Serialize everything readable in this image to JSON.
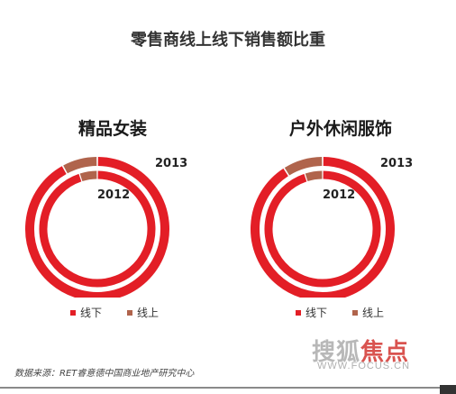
{
  "title": "零售商线上线下销售额比重",
  "colors": {
    "offline": "#e31e26",
    "online": "#b0644c"
  },
  "chart_data": [
    {
      "type": "pie",
      "title": "精品女装",
      "series": [
        {
          "name": "2013",
          "ring": "outer",
          "values": [
            92,
            8
          ]
        },
        {
          "name": "2012",
          "ring": "inner",
          "values": [
            95,
            5
          ]
        }
      ],
      "categories": [
        "线下",
        "线上"
      ],
      "ring_labels": [
        "2013",
        "2012"
      ],
      "legend": [
        "线下",
        "线上"
      ],
      "legend_position": "bottom"
    },
    {
      "type": "pie",
      "title": "户外休闲服饰",
      "series": [
        {
          "name": "2013",
          "ring": "outer",
          "values": [
            91,
            9
          ]
        },
        {
          "name": "2012",
          "ring": "inner",
          "values": [
            95,
            5
          ]
        }
      ],
      "categories": [
        "线下",
        "线上"
      ],
      "ring_labels": [
        "2013",
        "2012"
      ],
      "legend": [
        "线下",
        "线上"
      ],
      "legend_position": "bottom"
    }
  ],
  "source": "数据来源：RET睿意德中国商业地产研究中心",
  "watermark": {
    "cn_text": "搜狐",
    "cn_accent": "焦点",
    "url": "WWW.FOCUS.CN"
  }
}
